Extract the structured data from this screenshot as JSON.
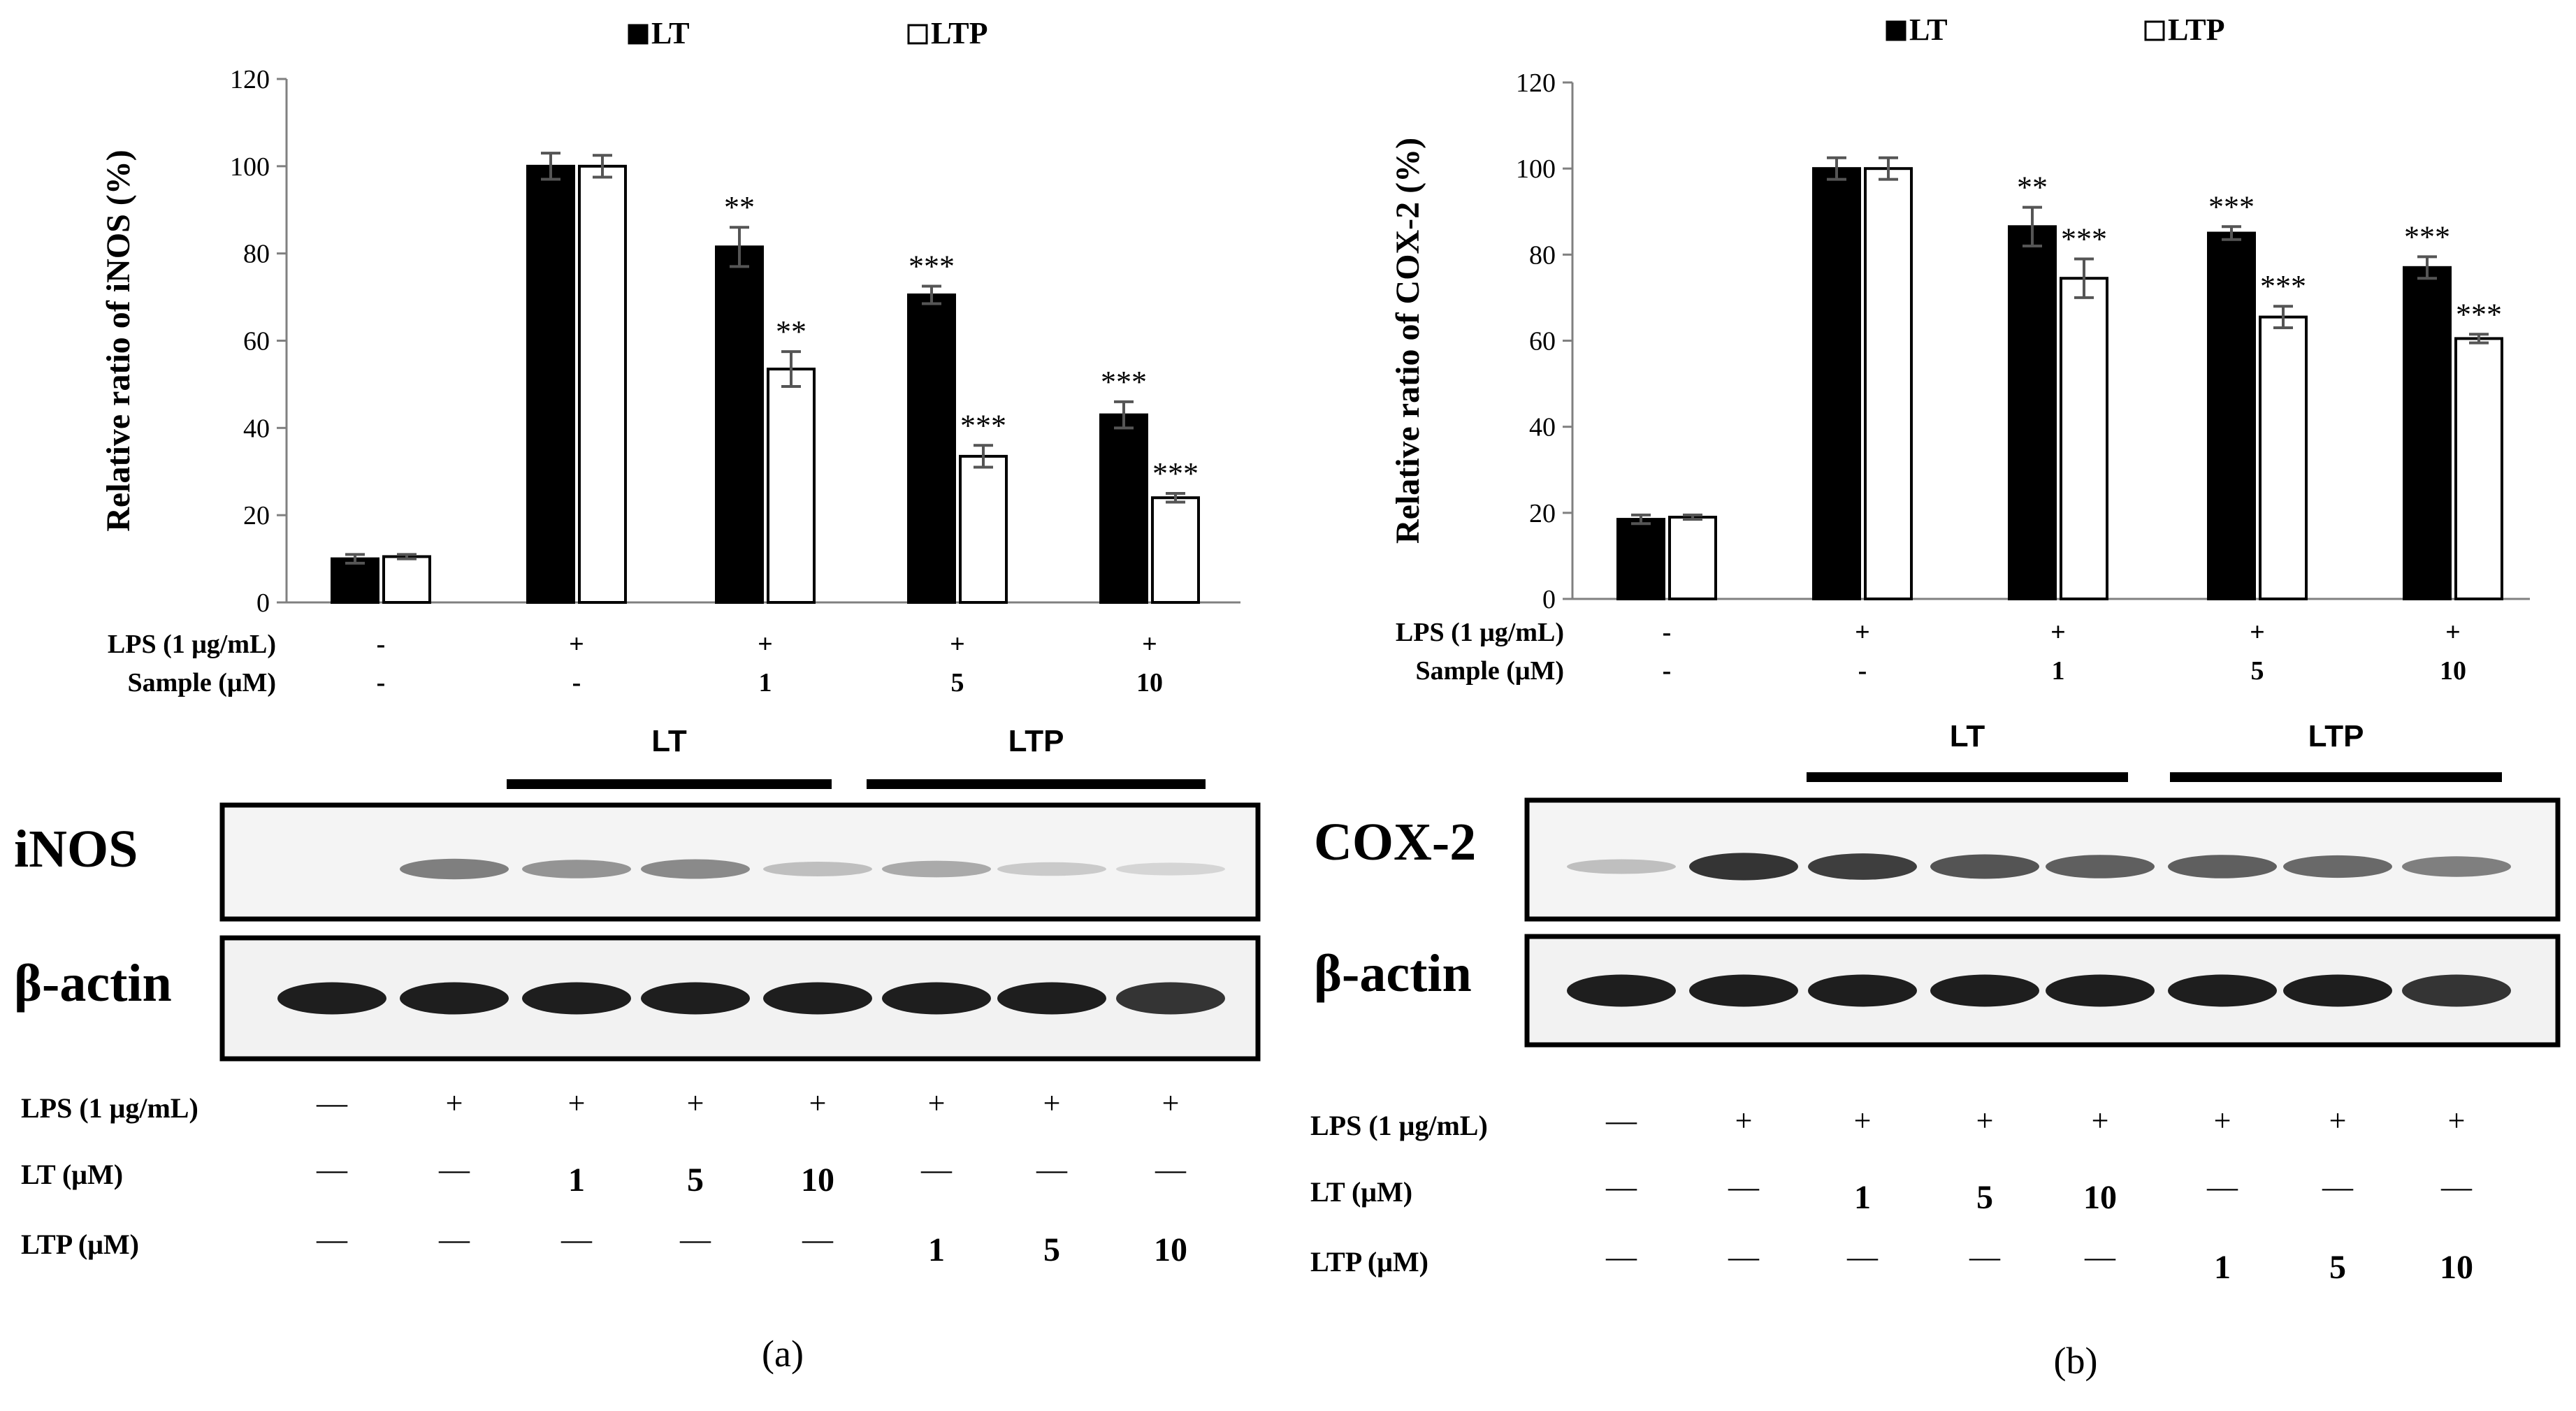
{
  "chart_data": [
    {
      "type": "bar",
      "panel_label": "(a)",
      "ylabel": "Relative ratio of iNOS (%)",
      "ylim": [
        0,
        120
      ],
      "yticks": [
        0,
        20,
        40,
        60,
        80,
        100,
        120
      ],
      "legend_placement": "top",
      "series": [
        {
          "name": "LT",
          "color": "#000000",
          "values": [
            10,
            100,
            81.5,
            70.5,
            43
          ],
          "errors": [
            1,
            3,
            4.5,
            2,
            3
          ],
          "sig": [
            "",
            "",
            "**",
            "***",
            "***"
          ]
        },
        {
          "name": "LTP",
          "color": "#ffffff",
          "values": [
            10.5,
            100,
            53.5,
            33.5,
            24
          ],
          "errors": [
            0.5,
            2.5,
            4,
            2.5,
            1
          ],
          "sig": [
            "",
            "",
            "**",
            "***",
            "***"
          ]
        }
      ],
      "condition_rows": [
        {
          "label": "LPS (1 μg/mL)",
          "values": [
            "-",
            "+",
            "+",
            "+",
            "+"
          ]
        },
        {
          "label": "Sample (μM)",
          "values": [
            "-",
            "-",
            "1",
            "5",
            "10"
          ]
        }
      ],
      "blot": {
        "group_labels": [
          "LT",
          "LTP"
        ],
        "rows": [
          {
            "label": "iNOS",
            "intensity": [
              0.0,
              0.55,
              0.45,
              0.5,
              0.25,
              0.35,
              0.2,
              0.15
            ]
          },
          {
            "label": "β-actin",
            "intensity": [
              1,
              1,
              1,
              1,
              1,
              1,
              1,
              0.9
            ]
          }
        ],
        "condition_rows": [
          {
            "label": "LPS (1 μg/mL)",
            "values": [
              "—",
              "+",
              "+",
              "+",
              "+",
              "+",
              "+",
              "+"
            ]
          },
          {
            "label": "LT (μM)",
            "values": [
              "—",
              "—",
              "1",
              "5",
              "10",
              "—",
              "—",
              "—"
            ]
          },
          {
            "label": "LTP (μM)",
            "values": [
              "—",
              "—",
              "—",
              "—",
              "—",
              "1",
              "5",
              "10"
            ]
          }
        ]
      }
    },
    {
      "type": "bar",
      "panel_label": "(b)",
      "ylabel": "Relative ratio of COX-2 (%)",
      "ylim": [
        0,
        120
      ],
      "yticks": [
        0,
        20,
        40,
        60,
        80,
        100,
        120
      ],
      "legend_placement": "top",
      "series": [
        {
          "name": "LT",
          "color": "#000000",
          "values": [
            18.5,
            100,
            86.5,
            85,
            77
          ],
          "errors": [
            1,
            2.5,
            4.5,
            1.5,
            2.5
          ],
          "sig": [
            "",
            "",
            "**",
            "***",
            "***"
          ]
        },
        {
          "name": "LTP",
          "color": "#ffffff",
          "values": [
            19,
            100,
            74.5,
            65.5,
            60.5
          ],
          "errors": [
            0.5,
            2.5,
            4.5,
            2.5,
            1
          ],
          "sig": [
            "",
            "",
            "***",
            "***",
            "***"
          ]
        }
      ],
      "condition_rows": [
        {
          "label": "LPS (1 μg/mL)",
          "values": [
            "-",
            "+",
            "+",
            "+",
            "+"
          ]
        },
        {
          "label": "Sample (μM)",
          "values": [
            "-",
            "-",
            "1",
            "5",
            "10"
          ]
        }
      ],
      "blot": {
        "group_labels": [
          "LT",
          "LTP"
        ],
        "rows": [
          {
            "label": "COX-2",
            "intensity": [
              0.25,
              0.9,
              0.85,
              0.75,
              0.7,
              0.7,
              0.65,
              0.55
            ]
          },
          {
            "label": "β-actin",
            "intensity": [
              1,
              1,
              1,
              1,
              1,
              1,
              1,
              0.9
            ]
          }
        ],
        "condition_rows": [
          {
            "label": "LPS (1 μg/mL)",
            "values": [
              "—",
              "+",
              "+",
              "+",
              "+",
              "+",
              "+",
              "+"
            ]
          },
          {
            "label": "LT (μM)",
            "values": [
              "—",
              "—",
              "1",
              "5",
              "10",
              "—",
              "—",
              "—"
            ]
          },
          {
            "label": "LTP (μM)",
            "values": [
              "—",
              "—",
              "—",
              "—",
              "—",
              "1",
              "5",
              "10"
            ]
          }
        ]
      }
    }
  ]
}
